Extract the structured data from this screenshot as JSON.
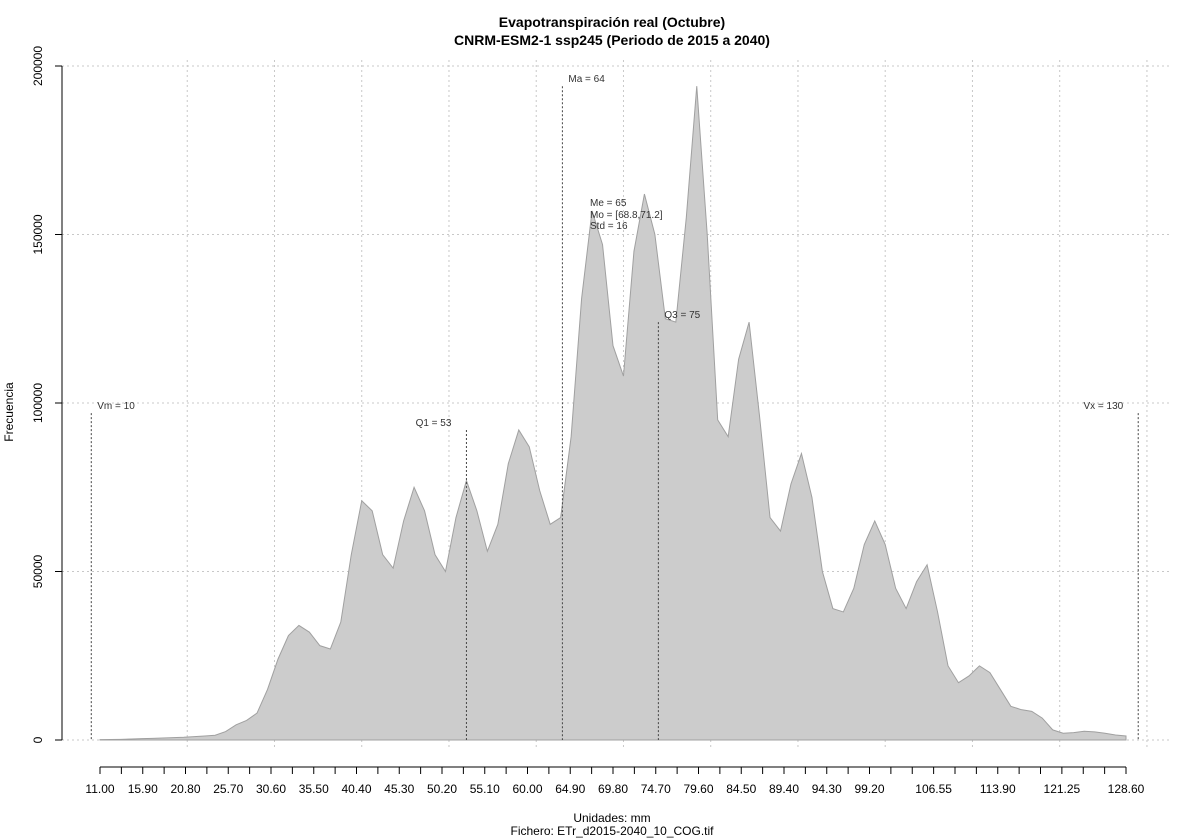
{
  "chart_data": {
    "type": "area",
    "title": "Evapotranspiración real (Octubre)",
    "subtitle": "CNRM-ESM2-1 ssp245 (Periodo de 2015 a 2040)",
    "xlabel": "Unidades: mm",
    "footer": "Fichero: ETr_d2015-2040_10_COG.tif",
    "ylabel": "Frecuencia",
    "xlim": [
      11.0,
      128.6
    ],
    "ylim": [
      0,
      200000
    ],
    "grid": true,
    "fill_color": "#cccccc",
    "stroke_color": "#a0a0a0",
    "x_ticks": [
      11.0,
      15.9,
      20.8,
      25.7,
      30.6,
      35.5,
      40.4,
      45.3,
      50.2,
      55.1,
      60.0,
      64.9,
      69.8,
      74.7,
      79.6,
      84.5,
      89.4,
      94.3,
      99.2,
      106.55,
      113.9,
      121.25,
      128.6
    ],
    "x_tick_labels": [
      "11.00",
      "15.90",
      "20.80",
      "25.70",
      "30.60",
      "35.50",
      "40.40",
      "45.30",
      "50.20",
      "55.10",
      "60.00",
      "64.90",
      "69.80",
      "74.70",
      "79.60",
      "84.50",
      "89.40",
      "94.30",
      "99.20",
      "106.55",
      "113.90",
      "121.25",
      "128.60"
    ],
    "y_ticks": [
      0,
      50000,
      100000,
      150000,
      200000
    ],
    "y_tick_labels": [
      "0",
      "50000",
      "100000",
      "150000",
      "200000"
    ],
    "x_grid": [
      21.0,
      31.0,
      41.0,
      51.0,
      61.0,
      71.0,
      81.0,
      91.0,
      101.0,
      111.0,
      121.0,
      131.0
    ],
    "x": [
      11.0,
      12.2,
      13.4,
      14.6,
      15.8,
      17.0,
      18.2,
      19.4,
      20.6,
      21.8,
      23.0,
      24.2,
      25.4,
      26.6,
      27.8,
      29.0,
      30.2,
      31.4,
      32.6,
      33.8,
      35.0,
      36.2,
      37.4,
      38.6,
      39.8,
      41.0,
      42.2,
      43.4,
      44.6,
      45.8,
      47.0,
      48.2,
      49.4,
      50.6,
      51.8,
      53.0,
      54.2,
      55.4,
      56.6,
      57.8,
      59.0,
      60.2,
      61.4,
      62.6,
      63.8,
      65.0,
      66.2,
      67.4,
      68.6,
      69.8,
      71.0,
      72.2,
      73.4,
      74.6,
      75.8,
      77.0,
      78.2,
      79.4,
      80.6,
      81.8,
      83.0,
      84.2,
      85.4,
      86.6,
      87.8,
      89.0,
      90.2,
      91.4,
      92.6,
      93.8,
      95.0,
      96.2,
      97.4,
      98.6,
      99.8,
      101.0,
      102.2,
      103.4,
      104.6,
      105.8,
      107.0,
      108.2,
      109.4,
      110.6,
      111.8,
      113.0,
      114.2,
      115.4,
      116.6,
      117.8,
      119.0,
      120.2,
      121.4,
      122.6,
      123.8,
      125.0,
      126.2,
      127.4,
      128.6
    ],
    "values": [
      100,
      150,
      200,
      300,
      400,
      500,
      600,
      700,
      800,
      1000,
      1200,
      1400,
      2500,
      4500,
      5800,
      8000,
      15000,
      24000,
      31000,
      34000,
      32000,
      28000,
      27000,
      35000,
      55000,
      71000,
      68000,
      55000,
      51000,
      65000,
      75000,
      68000,
      55000,
      50000,
      66000,
      77000,
      68000,
      56000,
      64000,
      82000,
      92000,
      87000,
      74000,
      64000,
      66000,
      90000,
      131000,
      157000,
      147000,
      117000,
      108000,
      145000,
      162000,
      150000,
      125000,
      124000,
      155000,
      194000,
      150000,
      95000,
      90000,
      113000,
      124000,
      96000,
      66000,
      62000,
      76000,
      85000,
      72000,
      50000,
      39000,
      38000,
      45000,
      58000,
      65000,
      58000,
      45000,
      39000,
      47000,
      52000,
      38000,
      22000,
      17000,
      19000,
      22000,
      20000,
      15000,
      10000,
      9000,
      8500,
      6500,
      3000,
      2000,
      2200,
      2600,
      2400,
      2000,
      1500,
      1200
    ],
    "vlines": [
      {
        "label": "Vm = 10",
        "x": 10.0,
        "ytop": 97000
      },
      {
        "label": "Q1 = 53",
        "x": 53.0,
        "ytop": 92000
      },
      {
        "label": "Ma = 64",
        "x": 64.0,
        "ytop": 194000
      },
      {
        "label": "Q3 = 75",
        "x": 75.0,
        "ytop": 124000
      },
      {
        "label": "Vx = 130",
        "x": 130.0,
        "ytop": 97000
      }
    ],
    "stats_text": [
      "Me = 65",
      "Mo = [68.8,71.2]",
      "Std = 16"
    ]
  }
}
